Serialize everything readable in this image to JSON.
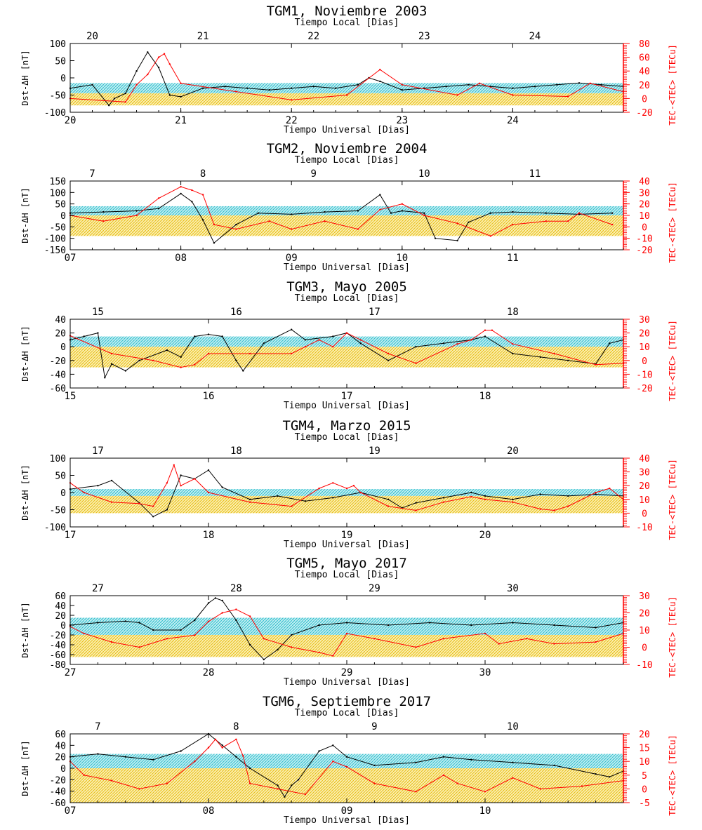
{
  "figure": {
    "left_axis_label": "Dst-ΔH [nT]",
    "right_axis_label": "TEC-<TEC> [TECu]",
    "top_axis_title": "Tiempo Local [Dias]",
    "bottom_axis_title": "Tiempo Universal [Dias]",
    "colors": {
      "dst": "#000000",
      "tec": "#ff0000",
      "band_upper": "#34c6d3",
      "band_lower": "#f0c814",
      "axis_right": "#ff0000"
    }
  },
  "chart_data": [
    {
      "type": "line",
      "title": "TGM1, Noviembre 2003",
      "xlabel": "Tiempo Universal [Dias]",
      "x_top_label": "Tiempo Local [Dias]",
      "ylabel": "Dst-ΔH [nT]",
      "y2label": "TEC-<TEC> [TECu]",
      "xlim": [
        20,
        25
      ],
      "ylim": [
        -100,
        100
      ],
      "y2lim": [
        -20,
        80
      ],
      "x_ticks": [
        "20",
        "21",
        "22",
        "23",
        "24"
      ],
      "top_ticks": [
        "20",
        "21",
        "22",
        "23",
        "24"
      ],
      "top_tick_positions": [
        20.2,
        21.2,
        22.2,
        23.2,
        24.2
      ],
      "y_ticks": [
        100,
        50,
        0,
        -50,
        -100
      ],
      "y2_ticks": [
        80,
        60,
        40,
        20,
        0,
        -20
      ],
      "band_upper": [
        -15,
        -45
      ],
      "band_lower": [
        -45,
        -80
      ],
      "series": [
        {
          "axis": "left",
          "x": [
            20.0,
            20.2,
            20.35,
            20.4,
            20.5,
            20.6,
            20.7,
            20.8,
            20.9,
            21.0,
            21.2,
            21.4,
            21.6,
            21.8,
            22.0,
            22.2,
            22.4,
            22.6,
            22.7,
            22.8,
            23.0,
            23.2,
            23.4,
            23.6,
            23.8,
            24.0,
            24.2,
            24.4,
            24.6,
            24.8,
            25.0
          ],
          "values": [
            -30,
            -20,
            -80,
            -60,
            -45,
            20,
            75,
            30,
            -50,
            -55,
            -30,
            -25,
            -30,
            -35,
            -30,
            -25,
            -30,
            -20,
            0,
            -10,
            -35,
            -30,
            -25,
            -20,
            -25,
            -30,
            -25,
            -20,
            -15,
            -20,
            -25
          ]
        },
        {
          "axis": "right",
          "x": [
            20.0,
            20.5,
            20.6,
            20.7,
            20.8,
            20.85,
            20.9,
            21.0,
            21.5,
            22.0,
            22.5,
            22.8,
            23.0,
            23.5,
            23.7,
            24.0,
            24.5,
            24.7,
            25.0
          ],
          "values": [
            0,
            -5,
            20,
            35,
            60,
            65,
            50,
            22,
            10,
            -2,
            5,
            42,
            20,
            5,
            22,
            5,
            3,
            22,
            10
          ]
        }
      ]
    },
    {
      "type": "line",
      "title": "TGM2, Noviembre 2004",
      "xlabel": "Tiempo Universal [Dias]",
      "x_top_label": "Tiempo Local [Dias]",
      "ylabel": "Dst-ΔH [nT]",
      "y2label": "TEC-<TEC> [TECu]",
      "xlim": [
        7,
        12
      ],
      "ylim": [
        -150,
        150
      ],
      "y2lim": [
        -20,
        40
      ],
      "x_ticks": [
        "07",
        "08",
        "09",
        "10",
        "11"
      ],
      "top_ticks": [
        "7",
        "8",
        "9",
        "10",
        "11"
      ],
      "top_tick_positions": [
        7.2,
        8.2,
        9.2,
        10.2,
        11.2
      ],
      "y_ticks": [
        150,
        100,
        50,
        0,
        -50,
        -100,
        -150
      ],
      "y2_ticks": [
        40,
        30,
        20,
        10,
        0,
        -10,
        -20
      ],
      "band_upper": [
        40,
        0
      ],
      "band_lower": [
        0,
        -90
      ],
      "series": [
        {
          "axis": "left",
          "x": [
            7.0,
            7.3,
            7.6,
            7.8,
            8.0,
            8.1,
            8.2,
            8.3,
            8.5,
            8.7,
            9.0,
            9.3,
            9.6,
            9.8,
            9.9,
            10.0,
            10.2,
            10.3,
            10.5,
            10.6,
            10.8,
            11.0,
            11.3,
            11.6,
            11.9
          ],
          "values": [
            10,
            15,
            20,
            30,
            95,
            60,
            -20,
            -120,
            -40,
            10,
            5,
            15,
            20,
            90,
            10,
            20,
            10,
            -100,
            -110,
            -30,
            10,
            15,
            10,
            5,
            10
          ]
        },
        {
          "axis": "right",
          "x": [
            7.0,
            7.3,
            7.6,
            7.8,
            8.0,
            8.1,
            8.2,
            8.3,
            8.5,
            8.8,
            9.0,
            9.3,
            9.6,
            9.8,
            10.0,
            10.2,
            10.5,
            10.8,
            11.0,
            11.3,
            11.5,
            11.6,
            11.9
          ],
          "values": [
            10,
            5,
            10,
            25,
            35,
            32,
            28,
            2,
            -2,
            5,
            -2,
            5,
            -2,
            15,
            20,
            10,
            3,
            -8,
            2,
            5,
            5,
            12,
            2
          ]
        }
      ]
    },
    {
      "type": "line",
      "title": "TGM3, Mayo 2005",
      "xlabel": "Tiempo Universal [Dias]",
      "x_top_label": "Tiempo Local [Dias]",
      "ylabel": "Dst-ΔH [nT]",
      "y2label": "TEC-<TEC> [TECu]",
      "xlim": [
        15,
        19
      ],
      "ylim": [
        -60,
        40
      ],
      "y2lim": [
        -20,
        30
      ],
      "x_ticks": [
        "15",
        "16",
        "17",
        "18"
      ],
      "top_ticks": [
        "15",
        "16",
        "17",
        "18"
      ],
      "top_tick_positions": [
        15.2,
        16.2,
        17.2,
        18.2
      ],
      "y_ticks": [
        40,
        20,
        0,
        -20,
        -40,
        -60
      ],
      "y2_ticks": [
        30,
        20,
        10,
        0,
        -10,
        -20
      ],
      "band_upper": [
        15,
        0
      ],
      "band_lower": [
        0,
        -30
      ],
      "series": [
        {
          "axis": "left",
          "x": [
            15.0,
            15.1,
            15.2,
            15.25,
            15.3,
            15.4,
            15.5,
            15.7,
            15.8,
            15.9,
            16.0,
            16.1,
            16.2,
            16.25,
            16.4,
            16.6,
            16.7,
            16.9,
            17.0,
            17.1,
            17.3,
            17.5,
            17.7,
            17.9,
            18.0,
            18.2,
            18.4,
            18.6,
            18.8,
            18.9,
            19.0
          ],
          "values": [
            10,
            15,
            20,
            -45,
            -25,
            -35,
            -20,
            -5,
            -15,
            15,
            18,
            15,
            -20,
            -35,
            5,
            25,
            10,
            15,
            20,
            5,
            -20,
            0,
            5,
            10,
            15,
            -10,
            -15,
            -20,
            -25,
            5,
            10
          ]
        },
        {
          "axis": "right",
          "x": [
            15.0,
            15.3,
            15.6,
            15.8,
            15.9,
            16.0,
            16.3,
            16.6,
            16.7,
            16.8,
            16.9,
            17.0,
            17.1,
            17.3,
            17.5,
            17.8,
            17.9,
            18.0,
            18.05,
            18.2,
            18.5,
            18.8,
            19.0
          ],
          "values": [
            18,
            5,
            0,
            -5,
            -3,
            5,
            5,
            5,
            10,
            15,
            10,
            20,
            15,
            5,
            -2,
            12,
            15,
            22,
            22,
            12,
            5,
            -3,
            -2
          ]
        }
      ]
    },
    {
      "type": "line",
      "title": "TGM4, Marzo 2015",
      "xlabel": "Tiempo Universal [Dias]",
      "x_top_label": "Tiempo Local [Dias]",
      "ylabel": "Dst-ΔH [nT]",
      "y2label": "TEC-<TEC> [TECu]",
      "xlim": [
        17,
        21
      ],
      "ylim": [
        -100,
        100
      ],
      "y2lim": [
        -10,
        40
      ],
      "x_ticks": [
        "17",
        "18",
        "19",
        "20"
      ],
      "top_ticks": [
        "17",
        "18",
        "19",
        "20"
      ],
      "top_tick_positions": [
        17.2,
        18.2,
        19.2,
        20.2
      ],
      "y_ticks": [
        100,
        50,
        0,
        -50,
        -100
      ],
      "y2_ticks": [
        40,
        30,
        20,
        10,
        0,
        -10
      ],
      "band_upper": [
        10,
        -10
      ],
      "band_lower": [
        -10,
        -60
      ],
      "series": [
        {
          "axis": "left",
          "x": [
            17.0,
            17.2,
            17.3,
            17.5,
            17.6,
            17.7,
            17.8,
            17.9,
            18.0,
            18.1,
            18.3,
            18.5,
            18.7,
            18.9,
            19.1,
            19.3,
            19.4,
            19.5,
            19.7,
            19.9,
            20.0,
            20.2,
            20.4,
            20.6,
            20.8,
            21.0
          ],
          "values": [
            10,
            20,
            35,
            -30,
            -70,
            -50,
            50,
            40,
            65,
            15,
            -20,
            -10,
            -25,
            -15,
            0,
            -20,
            -45,
            -30,
            -15,
            0,
            -10,
            -20,
            -5,
            -10,
            -5,
            -10
          ]
        },
        {
          "axis": "right",
          "x": [
            17.0,
            17.1,
            17.3,
            17.5,
            17.6,
            17.7,
            17.75,
            17.8,
            17.9,
            18.0,
            18.3,
            18.6,
            18.8,
            18.9,
            19.0,
            19.05,
            19.1,
            19.3,
            19.5,
            19.7,
            19.9,
            20.0,
            20.2,
            20.4,
            20.5,
            20.6,
            20.8,
            20.9,
            21.0
          ],
          "values": [
            22,
            15,
            8,
            7,
            5,
            22,
            35,
            20,
            25,
            15,
            8,
            5,
            18,
            22,
            18,
            20,
            15,
            5,
            2,
            8,
            12,
            10,
            8,
            3,
            2,
            5,
            15,
            18,
            10
          ]
        }
      ]
    },
    {
      "type": "line",
      "title": "TGM5, Mayo 2017",
      "xlabel": "Tiempo Universal [Dias]",
      "x_top_label": "Tiempo Local [Dias]",
      "ylabel": "Dst-ΔH [nT]",
      "y2label": "TEC-<TEC> [TECu]",
      "xlim": [
        27,
        31
      ],
      "ylim": [
        -80,
        60
      ],
      "y2lim": [
        -10,
        30
      ],
      "x_ticks": [
        "27",
        "28",
        "29",
        "30"
      ],
      "top_ticks": [
        "27",
        "28",
        "29",
        "30"
      ],
      "top_tick_positions": [
        27.2,
        28.2,
        29.2,
        30.2
      ],
      "y_ticks": [
        60,
        40,
        20,
        0,
        -20,
        -40,
        -60,
        -80
      ],
      "y2_ticks": [
        30,
        20,
        10,
        0,
        -10
      ],
      "band_upper": [
        15,
        -20
      ],
      "band_lower": [
        -20,
        -65
      ],
      "series": [
        {
          "axis": "left",
          "x": [
            27.0,
            27.2,
            27.4,
            27.5,
            27.6,
            27.8,
            27.9,
            28.0,
            28.05,
            28.1,
            28.2,
            28.3,
            28.4,
            28.5,
            28.6,
            28.8,
            29.0,
            29.3,
            29.6,
            29.9,
            30.2,
            30.5,
            30.8,
            31.0
          ],
          "values": [
            0,
            5,
            8,
            5,
            -10,
            -10,
            10,
            45,
            55,
            50,
            10,
            -40,
            -70,
            -50,
            -20,
            0,
            5,
            0,
            5,
            0,
            5,
            0,
            -5,
            5
          ]
        },
        {
          "axis": "right",
          "x": [
            27.0,
            27.1,
            27.3,
            27.5,
            27.7,
            27.9,
            28.0,
            28.1,
            28.2,
            28.3,
            28.4,
            28.6,
            28.8,
            28.9,
            29.0,
            29.2,
            29.5,
            29.7,
            30.0,
            30.1,
            30.3,
            30.5,
            30.8,
            31.0
          ],
          "values": [
            12,
            8,
            3,
            0,
            5,
            7,
            15,
            20,
            22,
            18,
            5,
            0,
            -3,
            -5,
            8,
            5,
            0,
            5,
            8,
            2,
            5,
            2,
            3,
            8
          ]
        }
      ]
    },
    {
      "type": "line",
      "title": "TGM6, Septiembre 2017",
      "xlabel": "Tiempo Universal [Dias]",
      "x_top_label": "Tiempo Local [Dias]",
      "ylabel": "Dst-ΔH [nT]",
      "y2label": "TEC-<TEC> [TECu]",
      "xlim": [
        7,
        11
      ],
      "ylim": [
        -60,
        60
      ],
      "y2lim": [
        -5,
        20
      ],
      "x_ticks": [
        "07",
        "08",
        "09",
        "10"
      ],
      "top_ticks": [
        "7",
        "8",
        "9",
        "10"
      ],
      "top_tick_positions": [
        7.2,
        8.2,
        9.2,
        10.2
      ],
      "y_ticks": [
        60,
        40,
        20,
        0,
        -20,
        -40,
        -60
      ],
      "y2_ticks": [
        20,
        15,
        10,
        5,
        0,
        -5
      ],
      "band_upper": [
        25,
        0
      ],
      "band_lower": [
        0,
        -60
      ],
      "series": [
        {
          "axis": "left",
          "x": [
            7.0,
            7.2,
            7.4,
            7.6,
            7.8,
            8.0,
            8.1,
            8.2,
            8.3,
            8.5,
            8.55,
            8.6,
            8.65,
            8.8,
            8.9,
            9.0,
            9.2,
            9.5,
            9.7,
            9.9,
            10.2,
            10.5,
            10.8,
            10.9,
            11.0
          ],
          "values": [
            20,
            25,
            20,
            15,
            30,
            60,
            40,
            20,
            0,
            -30,
            -50,
            -30,
            -20,
            30,
            40,
            20,
            5,
            10,
            20,
            15,
            10,
            5,
            -10,
            -15,
            -5
          ]
        },
        {
          "axis": "right",
          "x": [
            7.0,
            7.1,
            7.3,
            7.5,
            7.7,
            7.9,
            8.0,
            8.05,
            8.1,
            8.2,
            8.25,
            8.3,
            8.5,
            8.7,
            8.9,
            9.0,
            9.2,
            9.5,
            9.7,
            9.8,
            10.0,
            10.2,
            10.4,
            10.7,
            11.0
          ],
          "values": [
            10,
            5,
            3,
            0,
            2,
            10,
            15,
            18,
            15,
            18,
            12,
            2,
            0,
            -2,
            10,
            8,
            2,
            -1,
            5,
            2,
            -1,
            4,
            0,
            1,
            3
          ]
        }
      ]
    }
  ]
}
